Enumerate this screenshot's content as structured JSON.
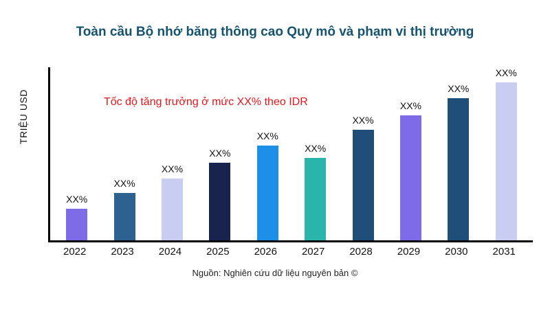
{
  "header": {
    "title": "Toàn cầu Bộ nhớ băng thông cao Quy mô và phạm vi thị trường"
  },
  "chart": {
    "y_axis_label": "TRIỆU USD",
    "annotation": "Tốc độ tăng trưởng ở mức XX% theo IDR",
    "annotation_color": "#e8161d",
    "title_color": "#15536f",
    "source": "Nguồn: Nghiên cứu dữ liệu nguyên bản ©"
  },
  "chart_data": {
    "type": "bar",
    "title": "Toàn cầu Bộ nhớ băng thông cao Quy mô và phạm vi thị trường",
    "xlabel": "",
    "ylabel": "TRIỆU USD",
    "categories": [
      "2022",
      "2023",
      "2024",
      "2025",
      "2026",
      "2027",
      "2028",
      "2029",
      "2030",
      "2031"
    ],
    "values": [
      20,
      30,
      39,
      49,
      60,
      52,
      70,
      79,
      90,
      100
    ],
    "bar_labels": [
      "XX%",
      "XX%",
      "XX%",
      "XX%",
      "XX%",
      "XX%",
      "XX%",
      "XX%",
      "XX%",
      "XX%"
    ],
    "bar_colors": [
      "#7d6be8",
      "#2d618f",
      "#c9cdf2",
      "#18244e",
      "#1d8fe8",
      "#2ab5ab",
      "#1f4e79",
      "#7d6be8",
      "#1f4e79",
      "#c9cdf2"
    ],
    "annotation": "Tốc độ tăng trưởng ở mức XX% theo IDR",
    "ylim": [
      0,
      100
    ],
    "grid": false,
    "legend": false
  }
}
